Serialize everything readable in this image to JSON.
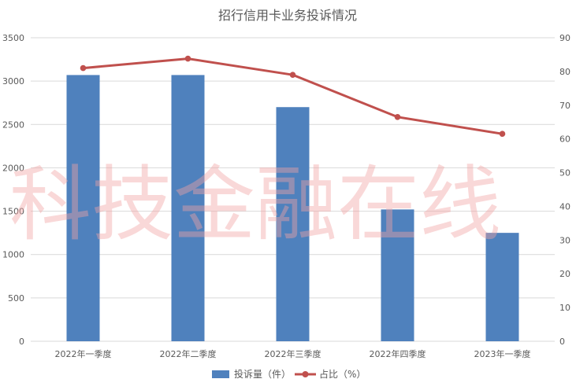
{
  "chart_data": {
    "type": "bar",
    "title": "招行信用卡业务投诉情况",
    "categories": [
      "2022年一季度",
      "2022年二季度",
      "2022年三季度",
      "2022年四季度",
      "2023年一季度"
    ],
    "series": [
      {
        "name": "投诉量（件）",
        "type": "bar",
        "axis": "left",
        "color": "#4f81bd",
        "values": [
          3070,
          3070,
          2700,
          1520,
          1250
        ]
      },
      {
        "name": "占比（%）",
        "type": "line",
        "axis": "right",
        "color": "#c0504d",
        "values": [
          81,
          83.8,
          79,
          66.5,
          61.5
        ]
      }
    ],
    "y_left": {
      "min": 0,
      "max": 3500,
      "ticks": [
        "0",
        "500",
        "1000",
        "1500",
        "2000",
        "2500",
        "3000",
        "3500"
      ]
    },
    "y_right": {
      "min": 0,
      "max": 90,
      "ticks": [
        "0",
        "10",
        "20",
        "30",
        "40",
        "50",
        "60",
        "70",
        "80",
        "90"
      ]
    },
    "grid": true,
    "legend_position": "bottom"
  },
  "watermark": {
    "text": "科技金融在线",
    "color": "#f3a3a3"
  },
  "colors": {
    "grid": "#d9d9d9",
    "axis_text": "#595959",
    "background": "#ffffff"
  }
}
